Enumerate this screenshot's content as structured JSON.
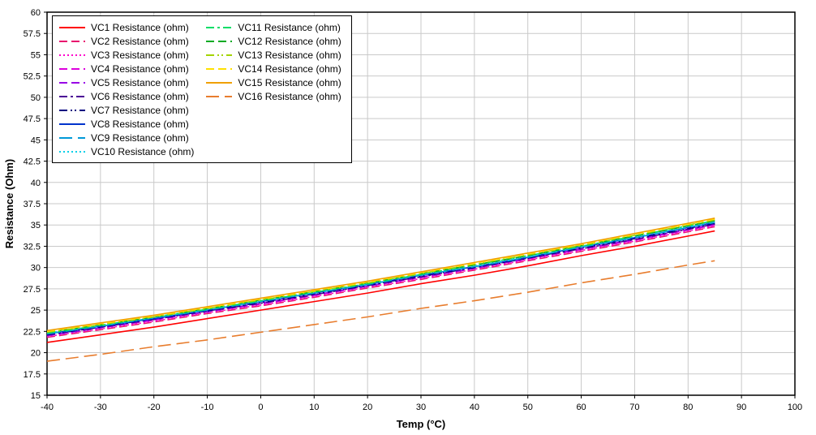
{
  "chart_data": {
    "type": "line",
    "title": "",
    "xlabel": "Temp (°C)",
    "ylabel": "Resistance (Ohm)",
    "xlim": [
      -40,
      100
    ],
    "ylim": [
      15,
      60
    ],
    "grid": true,
    "legend_position": "top-left",
    "x_ticks": [
      -40,
      -30,
      -20,
      -10,
      0,
      10,
      20,
      30,
      40,
      50,
      60,
      70,
      80,
      90,
      100
    ],
    "y_ticks": [
      15,
      17.5,
      20,
      22.5,
      25,
      27.5,
      30,
      32.5,
      35,
      37.5,
      40,
      42.5,
      45,
      47.5,
      50,
      52.5,
      55,
      57.5,
      60
    ],
    "x": [
      -40,
      -30,
      -20,
      -10,
      0,
      10,
      20,
      30,
      40,
      50,
      60,
      70,
      80,
      85
    ],
    "series": [
      {
        "name": "VC1 Resistance (ohm)",
        "color": "#FF0000",
        "dash": "solid",
        "values": [
          21.2,
          22.1,
          23.0,
          24.0,
          25.0,
          26.0,
          27.0,
          28.1,
          29.1,
          30.2,
          31.4,
          32.5,
          33.7,
          34.3
        ]
      },
      {
        "name": "VC2 Resistance (ohm)",
        "color": "#E8116E",
        "dash": "dash",
        "values": [
          21.8,
          22.7,
          23.6,
          24.6,
          25.5,
          26.5,
          27.6,
          28.6,
          29.7,
          30.8,
          31.9,
          33.0,
          34.2,
          34.8
        ]
      },
      {
        "name": "VC3 Resistance (ohm)",
        "color": "#FF00CC",
        "dash": "dot",
        "values": [
          21.9,
          22.8,
          23.7,
          24.7,
          25.6,
          26.6,
          27.7,
          28.7,
          29.8,
          30.9,
          32.0,
          33.1,
          34.3,
          34.9
        ]
      },
      {
        "name": "VC4 Resistance (ohm)",
        "color": "#DD00DD",
        "dash": "dash",
        "values": [
          22.0,
          22.9,
          23.8,
          24.8,
          25.7,
          26.7,
          27.8,
          28.8,
          29.9,
          31.0,
          32.1,
          33.2,
          34.4,
          35.0
        ]
      },
      {
        "name": "VC5 Resistance (ohm)",
        "color": "#9900E6",
        "dash": "dash",
        "values": [
          22.0,
          22.9,
          23.9,
          24.8,
          25.8,
          26.8,
          27.8,
          28.9,
          29.9,
          31.1,
          32.2,
          33.3,
          34.5,
          35.1
        ]
      },
      {
        "name": "VC6 Resistance (ohm)",
        "color": "#4B0096",
        "dash": "dashdot",
        "values": [
          22.1,
          23.0,
          23.9,
          24.9,
          25.8,
          26.8,
          27.9,
          28.9,
          30.0,
          31.1,
          32.2,
          33.3,
          34.5,
          35.1
        ]
      },
      {
        "name": "VC7 Resistance (ohm)",
        "color": "#000080",
        "dash": "dashdotdot",
        "values": [
          22.1,
          23.0,
          24.0,
          24.9,
          25.9,
          26.9,
          27.9,
          29.0,
          30.0,
          31.1,
          32.3,
          33.4,
          34.6,
          35.2
        ]
      },
      {
        "name": "VC8 Resistance (ohm)",
        "color": "#0033CC",
        "dash": "solid",
        "values": [
          22.2,
          23.1,
          24.0,
          25.0,
          26.0,
          27.0,
          28.0,
          29.1,
          30.1,
          31.2,
          32.4,
          33.5,
          34.7,
          35.3
        ]
      },
      {
        "name": "VC9 Resistance (ohm)",
        "color": "#0099D8",
        "dash": "longdash",
        "values": [
          22.2,
          23.1,
          24.1,
          25.0,
          26.0,
          27.0,
          28.0,
          29.1,
          30.1,
          31.2,
          32.4,
          33.5,
          34.7,
          35.3
        ]
      },
      {
        "name": "VC10 Resistance (ohm)",
        "color": "#00D0E8",
        "dash": "dot",
        "values": [
          22.3,
          23.2,
          24.1,
          25.1,
          26.1,
          27.1,
          28.1,
          29.2,
          30.2,
          31.3,
          32.5,
          33.6,
          34.8,
          35.4
        ]
      },
      {
        "name": "VC11 Resistance (ohm)",
        "color": "#00DD66",
        "dash": "dashdot",
        "values": [
          22.3,
          23.2,
          24.2,
          25.1,
          26.1,
          27.1,
          28.1,
          29.2,
          30.3,
          31.4,
          32.5,
          33.7,
          34.9,
          35.5
        ]
      },
      {
        "name": "VC12 Resistance (ohm)",
        "color": "#00AA22",
        "dash": "dash",
        "values": [
          22.4,
          23.3,
          24.2,
          25.2,
          26.2,
          27.2,
          28.2,
          29.3,
          30.3,
          31.4,
          32.6,
          33.7,
          34.9,
          35.5
        ]
      },
      {
        "name": "VC13 Resistance (ohm)",
        "color": "#A4D400",
        "dash": "dashdotdot",
        "values": [
          22.4,
          23.3,
          24.2,
          25.2,
          26.2,
          27.2,
          28.2,
          29.3,
          30.4,
          31.5,
          32.6,
          33.8,
          35.0,
          35.6
        ]
      },
      {
        "name": "VC14 Resistance (ohm)",
        "color": "#FFE000",
        "dash": "dash",
        "values": [
          22.5,
          23.4,
          24.3,
          25.3,
          26.3,
          27.3,
          28.3,
          29.4,
          30.5,
          31.6,
          32.7,
          33.9,
          35.1,
          35.7
        ]
      },
      {
        "name": "VC15 Resistance (ohm)",
        "color": "#F0A000",
        "dash": "solid",
        "values": [
          22.6,
          23.5,
          24.4,
          25.4,
          26.4,
          27.4,
          28.4,
          29.5,
          30.6,
          31.7,
          32.8,
          34.0,
          35.2,
          35.8
        ]
      },
      {
        "name": "VC16 Resistance (ohm)",
        "color": "#E87D2E",
        "dash": "longdash",
        "values": [
          19.0,
          19.8,
          20.7,
          21.5,
          22.4,
          23.3,
          24.2,
          25.2,
          26.1,
          27.1,
          28.2,
          29.2,
          30.3,
          30.8
        ]
      }
    ]
  }
}
